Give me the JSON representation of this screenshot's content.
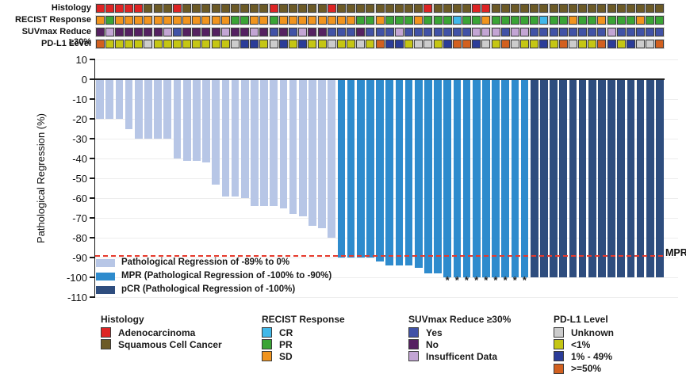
{
  "tracks": {
    "rows": [
      {
        "key": "histology",
        "label": "Histology",
        "values": [
          "R",
          "R",
          "R",
          "R",
          "R",
          "S",
          "S",
          "S",
          "R",
          "S",
          "S",
          "S",
          "S",
          "S",
          "S",
          "S",
          "S",
          "S",
          "R",
          "S",
          "S",
          "S",
          "S",
          "S",
          "R",
          "S",
          "S",
          "S",
          "S",
          "S",
          "S",
          "S",
          "S",
          "S",
          "R",
          "S",
          "S",
          "S",
          "S",
          "R",
          "R",
          "S",
          "S",
          "S",
          "S",
          "S",
          "S",
          "S",
          "S",
          "S",
          "S",
          "S",
          "S",
          "S",
          "S",
          "S",
          "S",
          "S",
          "S"
        ]
      },
      {
        "key": "recist",
        "label": "RECIST Response",
        "values": [
          "O",
          "G",
          "O",
          "O",
          "O",
          "O",
          "O",
          "O",
          "O",
          "O",
          "O",
          "O",
          "O",
          "O",
          "G",
          "G",
          "O",
          "O",
          "G",
          "O",
          "O",
          "O",
          "O",
          "O",
          "O",
          "O",
          "O",
          "G",
          "G",
          "O",
          "G",
          "G",
          "G",
          "O",
          "G",
          "G",
          "G",
          "C",
          "G",
          "G",
          "O",
          "G",
          "G",
          "G",
          "G",
          "G",
          "C",
          "G",
          "G",
          "O",
          "G",
          "G",
          "O",
          "G",
          "G",
          "G",
          "O",
          "G",
          "G"
        ]
      },
      {
        "key": "suvmax",
        "label": "SUVmax Reduce ≥30%",
        "values": [
          "P",
          "L",
          "P",
          "P",
          "P",
          "P",
          "P",
          "L",
          "B",
          "P",
          "P",
          "P",
          "P",
          "L",
          "P",
          "P",
          "L",
          "P",
          "B",
          "P",
          "B",
          "L",
          "P",
          "P",
          "B",
          "B",
          "B",
          "P",
          "B",
          "B",
          "B",
          "L",
          "B",
          "B",
          "B",
          "B",
          "B",
          "B",
          "B",
          "L",
          "L",
          "L",
          "B",
          "L",
          "L",
          "B",
          "B",
          "B",
          "B",
          "B",
          "B",
          "B",
          "B",
          "L",
          "B",
          "B",
          "B",
          "B",
          "B"
        ]
      },
      {
        "key": "pdl1",
        "label": "PD-L1 Level",
        "values": [
          "O",
          "Y",
          "Y",
          "Y",
          "Y",
          "U",
          "Y",
          "Y",
          "Y",
          "Y",
          "Y",
          "Y",
          "Y",
          "Y",
          "U",
          "D",
          "D",
          "Y",
          "U",
          "D",
          "Y",
          "D",
          "Y",
          "Y",
          "U",
          "Y",
          "Y",
          "U",
          "Y",
          "O",
          "D",
          "D",
          "Y",
          "U",
          "U",
          "Y",
          "D",
          "O",
          "O",
          "D",
          "U",
          "Y",
          "O",
          "U",
          "Y",
          "Y",
          "D",
          "Y",
          "O",
          "U",
          "Y",
          "Y",
          "O",
          "D",
          "Y",
          "D",
          "U",
          "U",
          "O"
        ]
      }
    ],
    "color_maps": {
      "histology": {
        "R": "#dd2424",
        "S": "#6c5a26"
      },
      "recist": {
        "C": "#41b8e9",
        "G": "#3aa435",
        "O": "#f0941e"
      },
      "suvmax": {
        "B": "#4152a6",
        "P": "#552161",
        "L": "#c3a5d4"
      },
      "pdl1": {
        "U": "#cccccc",
        "Y": "#c5c614",
        "D": "#2b3c98",
        "O": "#d2601f"
      }
    }
  },
  "chart_data": {
    "type": "bar",
    "title": "",
    "ylabel": "Pathological Regression (%)",
    "yticks": [
      10,
      0,
      -10,
      -20,
      -30,
      -40,
      -50,
      -60,
      -70,
      -80,
      -90,
      -100,
      -110
    ],
    "ylim": [
      -110,
      10
    ],
    "grid": true,
    "mpr_threshold": -90,
    "mpr_label": "MPR",
    "values": [
      -20,
      -20,
      -20,
      -25,
      -30,
      -30,
      -30,
      -30,
      -40,
      -41,
      -41,
      -42,
      -53,
      -59,
      -59,
      -60,
      -64,
      -64,
      -64,
      -65,
      -68,
      -69,
      -74,
      -75,
      -80,
      -90,
      -90,
      -90,
      -90,
      -92,
      -94,
      -94,
      -94,
      -95,
      -98,
      -98,
      -100,
      -100,
      -100,
      -100,
      -100,
      -100,
      -100,
      -100,
      -100,
      -100,
      -100,
      -100,
      -100,
      -100,
      -100,
      -100,
      -100,
      -100,
      -100,
      -100,
      -100,
      -100,
      -100
    ],
    "bar_classes": [
      "pr",
      "pr",
      "pr",
      "pr",
      "pr",
      "pr",
      "pr",
      "pr",
      "pr",
      "pr",
      "pr",
      "pr",
      "pr",
      "pr",
      "pr",
      "pr",
      "pr",
      "pr",
      "pr",
      "pr",
      "pr",
      "pr",
      "pr",
      "pr",
      "pr",
      "mpr",
      "mpr",
      "mpr",
      "mpr",
      "mpr",
      "mpr",
      "mpr",
      "mpr",
      "mpr",
      "mpr",
      "mpr",
      "mpr",
      "mpr",
      "mpr",
      "mpr",
      "mpr",
      "mpr",
      "mpr",
      "mpr",
      "mpr",
      "pcr",
      "pcr",
      "pcr",
      "pcr",
      "pcr",
      "pcr",
      "pcr",
      "pcr",
      "pcr",
      "pcr",
      "pcr",
      "pcr",
      "pcr",
      "pcr"
    ],
    "asterisk_bars": [
      37,
      38,
      39,
      40,
      41,
      42,
      43,
      44,
      45
    ],
    "asterisk_char": "*",
    "classes": {
      "pr": {
        "color": "#b7c6e6",
        "label": "Pathological Regression of -89% to 0%"
      },
      "mpr": {
        "color": "#2e8bcd",
        "label": "MPR (Pathological Regression of -100% to -90%)"
      },
      "pcr": {
        "color": "#2e4d7e",
        "label": "pCR (Pathological Regression of -100%)"
      }
    },
    "legend_order": [
      "pr",
      "mpr",
      "pcr"
    ]
  },
  "bottom_legend": {
    "groups": [
      {
        "title": "Histology",
        "items": [
          {
            "label": "Adenocarcinoma",
            "color": "#dd2424"
          },
          {
            "label": "Squamous Cell Cancer",
            "color": "#6c5a26"
          }
        ]
      },
      {
        "title": "RECIST Response",
        "items": [
          {
            "label": "CR",
            "color": "#41b8e9"
          },
          {
            "label": "PR",
            "color": "#3aa435"
          },
          {
            "label": "SD",
            "color": "#f0941e"
          }
        ]
      },
      {
        "title": "SUVmax Reduce ≥30%",
        "items": [
          {
            "label": "Yes",
            "color": "#4152a6"
          },
          {
            "label": "No",
            "color": "#552161"
          },
          {
            "label": "Insufficent Data",
            "color": "#c3a5d4"
          }
        ]
      },
      {
        "title": "PD-L1 Level",
        "items": [
          {
            "label": "Unknown",
            "color": "#cccccc"
          },
          {
            "label": "<1%",
            "color": "#c5c614"
          },
          {
            "label": "1% - 49%",
            "color": "#2b3c98"
          },
          {
            "label": ">=50%",
            "color": "#d2601f"
          }
        ]
      }
    ]
  }
}
